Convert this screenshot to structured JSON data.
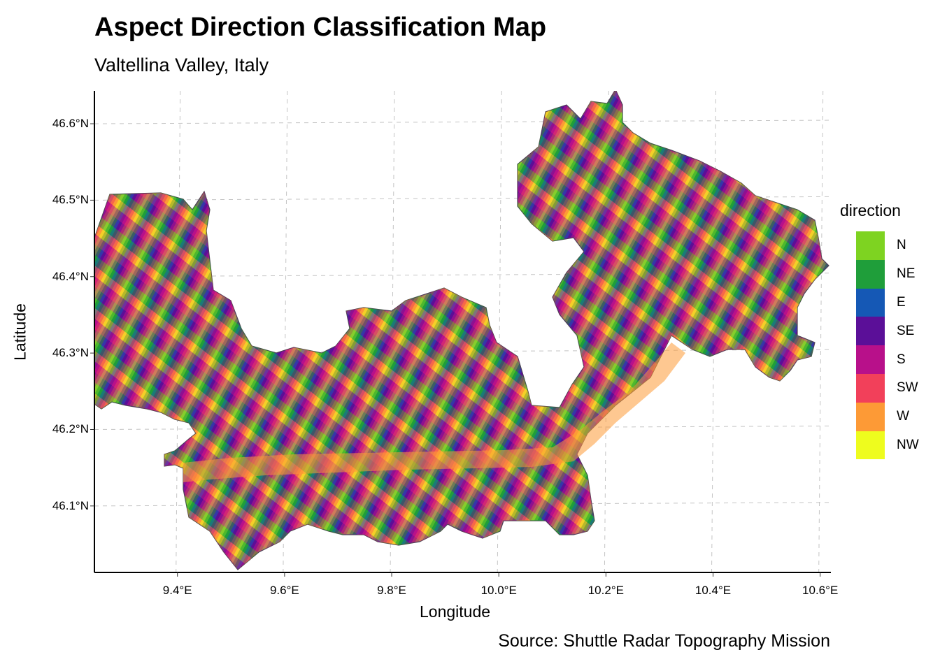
{
  "title": "Aspect Direction Classification Map",
  "subtitle": "Valtellina Valley, Italy",
  "caption": "Source: Shuttle Radar Topography Mission",
  "axes": {
    "xlabel": "Longitude",
    "ylabel": "Latitude",
    "x_ticks": [
      {
        "value": 9.4,
        "label": "9.4°E"
      },
      {
        "value": 9.6,
        "label": "9.6°E"
      },
      {
        "value": 9.8,
        "label": "9.8°E"
      },
      {
        "value": 10.0,
        "label": "10.0°E"
      },
      {
        "value": 10.2,
        "label": "10.2°E"
      },
      {
        "value": 10.4,
        "label": "10.4°E"
      },
      {
        "value": 10.6,
        "label": "10.6°E"
      }
    ],
    "y_ticks": [
      {
        "value": 46.1,
        "label": "46.1°N"
      },
      {
        "value": 46.2,
        "label": "46.2°N"
      },
      {
        "value": 46.3,
        "label": "46.3°N"
      },
      {
        "value": 46.4,
        "label": "46.4°N"
      },
      {
        "value": 46.5,
        "label": "46.5°N"
      },
      {
        "value": 46.6,
        "label": "46.6°N"
      }
    ],
    "xlim": [
      9.245,
      10.62
    ],
    "ylim": [
      46.013,
      46.643
    ],
    "grid": "dashed"
  },
  "legend": {
    "title": "direction",
    "position": "right",
    "items": [
      {
        "label": "N",
        "color": "#7ed321"
      },
      {
        "label": "NE",
        "color": "#1f9e3a"
      },
      {
        "label": "E",
        "color": "#1558b5"
      },
      {
        "label": "SE",
        "color": "#5b0f98"
      },
      {
        "label": "S",
        "color": "#b8108a"
      },
      {
        "label": "SW",
        "color": "#f2405a"
      },
      {
        "label": "W",
        "color": "#fd9a36"
      },
      {
        "label": "NW",
        "color": "#eefc1e"
      }
    ]
  }
}
